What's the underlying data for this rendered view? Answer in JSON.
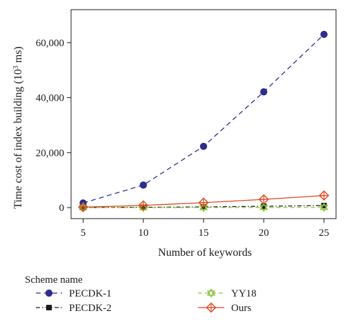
{
  "chart_data": {
    "type": "line",
    "title": "",
    "xlabel": "Number of keywords",
    "ylabel_main": "Time cost of index building (10",
    "ylabel_sup": "3",
    "ylabel_tail": " ms)",
    "x": [
      5,
      10,
      15,
      20,
      25
    ],
    "xlim": [
      4,
      26
    ],
    "ylim": [
      -4000,
      72000
    ],
    "xticks": [
      5,
      10,
      15,
      20,
      25
    ],
    "yticks": [
      0,
      20000,
      40000,
      60000
    ],
    "ytick_labels": [
      "0",
      "20,000",
      "40,000",
      "60,000"
    ],
    "grid": false,
    "legend_title": "Scheme name",
    "legend_position": "bottom",
    "series": [
      {
        "name": "PECDK-1",
        "values": [
          1700,
          8200,
          22300,
          42100,
          63000
        ],
        "color": "#2b2d8f",
        "dash": "7,5",
        "marker": "circle"
      },
      {
        "name": "PECDK-2",
        "values": [
          50,
          120,
          260,
          500,
          750
        ],
        "color": "#1a1a1a",
        "dash": "6,3,1.5,3",
        "marker": "square"
      },
      {
        "name": "YY18",
        "values": [
          0,
          20,
          40,
          60,
          80
        ],
        "color": "#8cc63f",
        "dash": "6,4",
        "marker": "star"
      },
      {
        "name": "Ours",
        "values": [
          180,
          800,
          1800,
          3000,
          4400
        ],
        "color": "#e0431e",
        "dash": "",
        "marker": "diamond"
      }
    ]
  }
}
